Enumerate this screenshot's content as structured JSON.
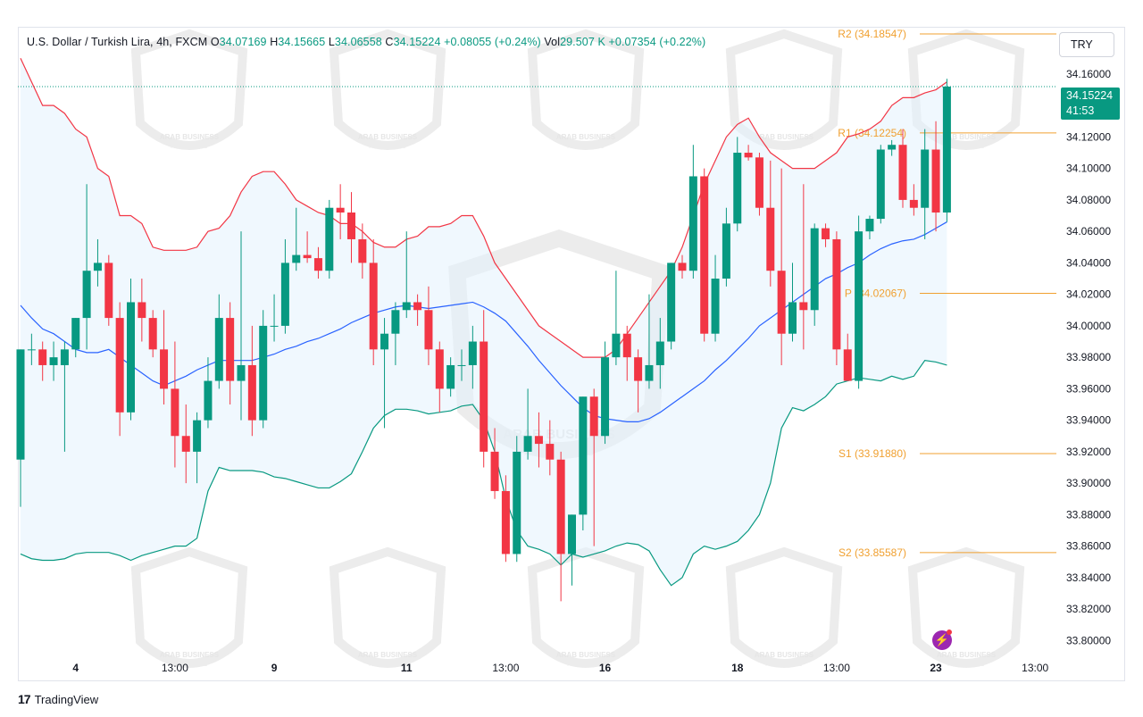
{
  "legend": {
    "symbol": "U.S. Dollar / Turkish Lira, 4h, FXCM",
    "open_label": "O",
    "open": "34.07169",
    "high_label": "H",
    "high": "34.15665",
    "low_label": "L",
    "low": "34.06558",
    "close_label": "C",
    "close": "34.15224",
    "change": "+0.08055 (+0.24%)",
    "vol_label": "Vol",
    "vol": "29.507 K",
    "vol_change": "+0.07354 (+0.22%)"
  },
  "currency": "TRY",
  "last_price": {
    "value": "34.15224",
    "countdown": "41:53"
  },
  "branding": {
    "tradingview": "TradingView",
    "watermark_line1": "ARAB BUSINESS",
    "watermark_line2": "Academy L.L.C"
  },
  "colors": {
    "up": "#089981",
    "down": "#f23645",
    "basis": "#2962ff",
    "upper": "#f23645",
    "lower": "#089981",
    "pivot": "#f0a030",
    "band_fill": "#e3f2fd"
  },
  "chart_data": {
    "type": "candlestick",
    "ylim": [
      33.79,
      34.173
    ],
    "y_ticks": [
      "34.16000",
      "34.14000",
      "34.12000",
      "34.10000",
      "34.08000",
      "34.06000",
      "34.04000",
      "34.02000",
      "34.00000",
      "33.98000",
      "33.96000",
      "33.94000",
      "33.92000",
      "33.90000",
      "33.88000",
      "33.86000",
      "33.84000",
      "33.82000",
      "33.80000"
    ],
    "x_ticks": [
      {
        "label": "4",
        "i": 5
      },
      {
        "label": "13:00",
        "i": 14
      },
      {
        "label": "9",
        "i": 23
      },
      {
        "label": "11",
        "i": 35
      },
      {
        "label": "13:00",
        "i": 44
      },
      {
        "label": "16",
        "i": 53
      },
      {
        "label": "18",
        "i": 65
      },
      {
        "label": "13:00",
        "i": 74
      },
      {
        "label": "23",
        "i": 83
      },
      {
        "label": "13:00",
        "i": 92
      }
    ],
    "candles": [
      [
        33.915,
        33.985,
        33.885,
        33.985
      ],
      [
        33.985,
        33.995,
        33.975,
        33.985
      ],
      [
        33.985,
        33.99,
        33.965,
        33.975
      ],
      [
        33.975,
        33.99,
        33.965,
        33.98
      ],
      [
        33.975,
        33.99,
        33.92,
        33.985
      ],
      [
        33.985,
        34.005,
        33.98,
        34.005
      ],
      [
        34.005,
        34.09,
        33.985,
        34.035
      ],
      [
        34.035,
        34.055,
        34.025,
        34.04
      ],
      [
        34.04,
        34.045,
        34.0,
        34.005
      ],
      [
        34.005,
        34.015,
        33.93,
        33.945
      ],
      [
        33.945,
        34.03,
        33.94,
        34.015
      ],
      [
        34.015,
        34.03,
        33.99,
        34.005
      ],
      [
        34.005,
        34.01,
        33.98,
        33.985
      ],
      [
        33.985,
        34.01,
        33.95,
        33.96
      ],
      [
        33.96,
        33.99,
        33.91,
        33.93
      ],
      [
        33.93,
        33.95,
        33.9,
        33.92
      ],
      [
        33.92,
        33.945,
        33.9,
        33.94
      ],
      [
        33.94,
        33.98,
        33.935,
        33.965
      ],
      [
        33.965,
        34.02,
        33.96,
        34.005
      ],
      [
        34.005,
        34.015,
        33.95,
        33.965
      ],
      [
        33.965,
        34.06,
        33.94,
        33.975
      ],
      [
        33.975,
        34.0,
        33.93,
        33.94
      ],
      [
        33.94,
        34.01,
        33.935,
        34.0
      ],
      [
        34.0,
        34.02,
        33.99,
        34.0
      ],
      [
        34.0,
        34.055,
        33.995,
        34.04
      ],
      [
        34.04,
        34.075,
        34.035,
        34.045
      ],
      [
        34.045,
        34.06,
        34.04,
        34.043
      ],
      [
        34.043,
        34.05,
        34.03,
        34.035
      ],
      [
        34.035,
        34.08,
        34.03,
        34.075
      ],
      [
        34.075,
        34.09,
        34.055,
        34.072
      ],
      [
        34.072,
        34.085,
        34.04,
        34.055
      ],
      [
        34.055,
        34.065,
        34.03,
        34.04
      ],
      [
        34.04,
        34.055,
        33.975,
        33.985
      ],
      [
        33.985,
        34.005,
        33.935,
        33.995
      ],
      [
        33.995,
        34.015,
        33.975,
        34.01
      ],
      [
        34.01,
        34.06,
        34.005,
        34.015
      ],
      [
        34.015,
        34.02,
        34.0,
        34.01
      ],
      [
        34.01,
        34.025,
        33.975,
        33.985
      ],
      [
        33.985,
        33.99,
        33.945,
        33.96
      ],
      [
        33.96,
        33.98,
        33.955,
        33.975
      ],
      [
        33.975,
        33.985,
        33.965,
        33.975
      ],
      [
        33.975,
        34.0,
        33.96,
        33.99
      ],
      [
        33.99,
        34.01,
        33.91,
        33.92
      ],
      [
        33.92,
        33.935,
        33.89,
        33.895
      ],
      [
        33.895,
        33.905,
        33.85,
        33.855
      ],
      [
        33.855,
        33.93,
        33.85,
        33.92
      ],
      [
        33.92,
        33.96,
        33.915,
        33.93
      ],
      [
        33.93,
        33.945,
        33.91,
        33.925
      ],
      [
        33.925,
        33.94,
        33.905,
        33.915
      ],
      [
        33.915,
        33.92,
        33.825,
        33.855
      ],
      [
        33.855,
        33.88,
        33.835,
        33.88
      ],
      [
        33.88,
        33.955,
        33.87,
        33.955
      ],
      [
        33.955,
        33.96,
        33.86,
        33.93
      ],
      [
        33.93,
        33.99,
        33.925,
        33.98
      ],
      [
        33.98,
        34.035,
        33.975,
        33.995
      ],
      [
        33.995,
        34.0,
        33.965,
        33.98
      ],
      [
        33.98,
        33.985,
        33.945,
        33.965
      ],
      [
        33.965,
        34.02,
        33.96,
        33.975
      ],
      [
        33.975,
        34.005,
        33.96,
        33.99
      ],
      [
        33.99,
        34.04,
        33.985,
        34.04
      ],
      [
        34.04,
        34.045,
        34.03,
        34.035
      ],
      [
        34.035,
        34.115,
        34.03,
        34.095
      ],
      [
        34.095,
        34.1,
        33.99,
        33.995
      ],
      [
        33.995,
        34.045,
        33.99,
        34.03
      ],
      [
        34.03,
        34.075,
        34.025,
        34.065
      ],
      [
        34.065,
        34.12,
        34.06,
        34.11
      ],
      [
        34.11,
        34.115,
        34.105,
        34.107
      ],
      [
        34.107,
        34.11,
        34.07,
        34.075
      ],
      [
        34.075,
        34.105,
        34.025,
        34.035
      ],
      [
        34.035,
        34.1,
        33.975,
        33.995
      ],
      [
        33.995,
        34.04,
        33.99,
        34.015
      ],
      [
        34.015,
        34.09,
        33.985,
        34.01
      ],
      [
        34.01,
        34.065,
        34.0,
        34.062
      ],
      [
        34.062,
        34.065,
        34.05,
        34.055
      ],
      [
        34.055,
        34.06,
        33.975,
        33.985
      ],
      [
        33.985,
        33.995,
        33.965,
        33.965
      ],
      [
        33.965,
        34.07,
        33.96,
        34.06
      ],
      [
        34.06,
        34.07,
        34.055,
        34.068
      ],
      [
        34.068,
        34.115,
        34.065,
        34.112
      ],
      [
        34.112,
        34.118,
        34.108,
        34.115
      ],
      [
        34.115,
        34.125,
        34.075,
        34.08
      ],
      [
        34.08,
        34.09,
        34.07,
        34.075
      ],
      [
        34.075,
        34.125,
        34.055,
        34.112
      ],
      [
        34.112,
        34.13,
        34.06,
        34.072
      ],
      [
        34.072,
        34.157,
        34.066,
        34.152
      ]
    ],
    "upper_band": [
      34.17,
      34.155,
      34.14,
      34.14,
      34.135,
      34.125,
      34.12,
      34.1,
      34.095,
      34.07,
      34.07,
      34.065,
      34.05,
      34.048,
      34.048,
      34.048,
      34.05,
      34.06,
      34.062,
      34.07,
      34.085,
      34.095,
      34.098,
      34.098,
      34.09,
      34.08,
      34.076,
      34.072,
      34.07,
      34.065,
      34.065,
      34.06,
      34.053,
      34.05,
      34.05,
      34.055,
      34.057,
      34.063,
      34.063,
      34.065,
      34.07,
      34.07,
      34.057,
      34.04,
      34.03,
      34.02,
      34.01,
      34.0,
      33.995,
      33.99,
      33.985,
      33.98,
      33.98,
      33.98,
      33.985,
      33.995,
      34.005,
      34.015,
      34.025,
      34.035,
      34.05,
      34.07,
      34.09,
      34.105,
      34.12,
      34.128,
      34.132,
      34.12,
      34.11,
      34.105,
      34.1,
      34.1,
      34.1,
      34.105,
      34.11,
      34.12,
      34.122,
      34.125,
      34.13,
      34.14,
      34.145,
      34.145,
      34.148,
      34.15,
      34.155
    ],
    "basis": [
      34.013,
      34.005,
      33.998,
      33.995,
      33.99,
      33.985,
      33.983,
      33.983,
      33.985,
      33.98,
      33.975,
      33.97,
      33.965,
      33.962,
      33.965,
      33.968,
      33.972,
      33.975,
      33.978,
      33.978,
      33.978,
      33.978,
      33.98,
      33.982,
      33.985,
      33.987,
      33.99,
      33.992,
      33.995,
      33.998,
      34.002,
      34.005,
      34.008,
      34.01,
      34.012,
      34.013,
      34.012,
      34.011,
      34.012,
      34.013,
      34.014,
      34.015,
      34.012,
      34.008,
      34.003,
      33.995,
      33.987,
      33.978,
      33.97,
      33.962,
      33.955,
      33.948,
      33.943,
      33.941,
      33.94,
      33.939,
      33.939,
      33.941,
      33.945,
      33.95,
      33.955,
      33.96,
      33.965,
      33.972,
      33.978,
      33.985,
      33.992,
      34.0,
      34.005,
      34.01,
      34.015,
      34.02,
      34.025,
      34.03,
      34.033,
      34.037,
      34.04,
      34.045,
      34.049,
      34.052,
      34.054,
      34.055,
      34.058,
      34.062,
      34.066
    ],
    "lower_band": [
      33.855,
      33.852,
      33.851,
      33.851,
      33.852,
      33.855,
      33.856,
      33.856,
      33.856,
      33.854,
      33.851,
      33.854,
      33.856,
      33.858,
      33.86,
      33.86,
      33.865,
      33.895,
      33.91,
      33.908,
      33.908,
      33.908,
      33.907,
      33.904,
      33.903,
      33.901,
      33.899,
      33.897,
      33.897,
      33.901,
      33.906,
      33.92,
      33.935,
      33.943,
      33.947,
      33.947,
      33.946,
      33.944,
      33.945,
      33.946,
      33.949,
      33.95,
      33.94,
      33.92,
      33.89,
      33.87,
      33.86,
      33.858,
      33.855,
      33.848,
      33.855,
      33.853,
      33.855,
      33.857,
      33.86,
      33.862,
      33.861,
      33.857,
      33.845,
      33.835,
      33.84,
      33.855,
      33.86,
      33.858,
      33.86,
      33.863,
      33.87,
      33.88,
      33.9,
      33.935,
      33.948,
      33.946,
      33.95,
      33.955,
      33.963,
      33.965,
      33.967,
      33.966,
      33.965,
      33.968,
      33.966,
      33.968,
      33.978,
      33.977,
      33.975
    ],
    "pivots": [
      {
        "label": "R2 (34.18547)",
        "value": 34.18547,
        "text_y_value": 34.18547
      },
      {
        "label": "R1 (34.12254)",
        "value": 34.12254,
        "text_y_value": 34.12254
      },
      {
        "label": "P (34.02067)",
        "value": 34.02067,
        "text_y_value": 34.02067
      },
      {
        "label": "S1 (33.91880)",
        "value": 33.9188,
        "text_y_value": 33.9188
      },
      {
        "label": "S2 (33.85587)",
        "value": 33.85587,
        "text_y_value": 33.85587
      }
    ]
  }
}
